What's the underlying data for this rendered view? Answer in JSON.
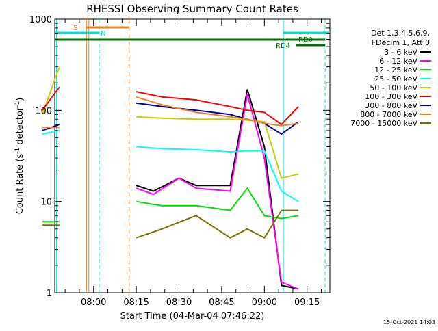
{
  "chart_data": {
    "type": "line",
    "title": "RHESSI Observing Summary Count Rates",
    "xlabel": "Start Time (04-Mar-04 07:46:22)",
    "ylabel": "Count Rate (s",
    "ylabel_sup": "-1",
    "ylabel_rest": " detector",
    "ylabel_tail": ")",
    "y_scale": "log",
    "ylim": [
      1,
      1000
    ],
    "xlim": [
      "07:46:22",
      "09:23:00"
    ],
    "x_ticks": [
      "08:00",
      "08:15",
      "08:30",
      "08:45",
      "09:00",
      "09:15"
    ],
    "y_ticks": [
      "1",
      "10",
      "100",
      "1000"
    ],
    "legend_header": [
      "Det 1,3,4,5,6,9,",
      "FDecim 1, Att 0"
    ],
    "legend_position": "right",
    "footer_date": "15-Oct-2021 14:03",
    "flags": [
      {
        "label": "S",
        "color": "#f08020"
      },
      {
        "label": "N",
        "color": "#00e0e0"
      },
      {
        "label": "RD0",
        "color": "#007000"
      },
      {
        "label": "RD4",
        "color": "#007000"
      }
    ],
    "series": [
      {
        "name": "3 - 6 keV",
        "color": "#000000",
        "values": [
          [
            7.7,
            null
          ],
          [
            7.93,
            null
          ],
          [
            8.19,
            null
          ],
          [
            8.25,
            15
          ],
          [
            8.35,
            13
          ],
          [
            8.5,
            18
          ],
          [
            8.6,
            15
          ],
          [
            8.8,
            15
          ],
          [
            8.9,
            170
          ],
          [
            9.0,
            40
          ],
          [
            9.1,
            1.2
          ],
          [
            9.2,
            1.1
          ]
        ]
      },
      {
        "name": "6 - 12 keV",
        "color": "#ff00ff",
        "values": [
          [
            7.7,
            null
          ],
          [
            7.93,
            null
          ],
          [
            8.19,
            null
          ],
          [
            8.25,
            14
          ],
          [
            8.35,
            12
          ],
          [
            8.5,
            18
          ],
          [
            8.6,
            14
          ],
          [
            8.8,
            13
          ],
          [
            8.9,
            150
          ],
          [
            9.0,
            30
          ],
          [
            9.1,
            1.3
          ],
          [
            9.2,
            1.1
          ]
        ]
      },
      {
        "name": "12 - 25 keV",
        "color": "#00e000",
        "values": [
          [
            7.7,
            6
          ],
          [
            7.8,
            6
          ],
          [
            7.93,
            null
          ],
          [
            8.19,
            null
          ],
          [
            8.25,
            10
          ],
          [
            8.4,
            9
          ],
          [
            8.6,
            9
          ],
          [
            8.8,
            8
          ],
          [
            8.9,
            14
          ],
          [
            9.0,
            7
          ],
          [
            9.1,
            6.5
          ],
          [
            9.2,
            7
          ]
        ]
      },
      {
        "name": "25 - 50 keV",
        "color": "#00ffff",
        "values": [
          [
            7.7,
            55
          ],
          [
            7.8,
            60
          ],
          [
            7.93,
            null
          ],
          [
            8.19,
            null
          ],
          [
            8.25,
            40
          ],
          [
            8.4,
            38
          ],
          [
            8.6,
            37
          ],
          [
            8.8,
            35
          ],
          [
            8.9,
            36
          ],
          [
            9.0,
            36
          ],
          [
            9.1,
            13
          ],
          [
            9.2,
            10
          ]
        ]
      },
      {
        "name": "50 - 100 keV",
        "color": "#cccc00",
        "values": [
          [
            7.7,
            90
          ],
          [
            7.8,
            300
          ],
          [
            7.93,
            null
          ],
          [
            8.19,
            null
          ],
          [
            8.25,
            85
          ],
          [
            8.4,
            82
          ],
          [
            8.6,
            80
          ],
          [
            8.8,
            80
          ],
          [
            8.9,
            78
          ],
          [
            9.0,
            75
          ],
          [
            9.1,
            18
          ],
          [
            9.2,
            20
          ]
        ]
      },
      {
        "name": "100 - 300 keV",
        "color": "#ff0000",
        "values": [
          [
            7.7,
            100
          ],
          [
            7.8,
            180
          ],
          [
            7.93,
            null
          ],
          [
            8.19,
            null
          ],
          [
            8.25,
            160
          ],
          [
            8.4,
            140
          ],
          [
            8.6,
            130
          ],
          [
            8.8,
            110
          ],
          [
            8.9,
            100
          ],
          [
            9.0,
            95
          ],
          [
            9.1,
            70
          ],
          [
            9.2,
            110
          ]
        ]
      },
      {
        "name": "300 - 800 keV",
        "color": "#0000a0",
        "values": [
          [
            7.7,
            60
          ],
          [
            7.8,
            70
          ],
          [
            7.93,
            null
          ],
          [
            8.19,
            null
          ],
          [
            8.25,
            120
          ],
          [
            8.4,
            110
          ],
          [
            8.6,
            100
          ],
          [
            8.8,
            90
          ],
          [
            8.9,
            80
          ],
          [
            9.0,
            72
          ],
          [
            9.1,
            55
          ],
          [
            9.2,
            75
          ]
        ]
      },
      {
        "name": "800 - 7000 keV",
        "color": "#f08020",
        "values": [
          [
            7.7,
            65
          ],
          [
            7.8,
            65
          ],
          [
            7.93,
            null
          ],
          [
            8.19,
            null
          ],
          [
            8.25,
            140
          ],
          [
            8.4,
            115
          ],
          [
            8.6,
            95
          ],
          [
            8.8,
            85
          ],
          [
            8.9,
            80
          ],
          [
            9.0,
            72
          ],
          [
            9.1,
            68
          ],
          [
            9.2,
            72
          ]
        ]
      },
      {
        "name": "7000 - 15000 keV",
        "color": "#807000",
        "values": [
          [
            7.7,
            5.5
          ],
          [
            7.8,
            5.5
          ],
          [
            7.93,
            null
          ],
          [
            8.19,
            null
          ],
          [
            8.25,
            4
          ],
          [
            8.4,
            5
          ],
          [
            8.6,
            7
          ],
          [
            8.8,
            4
          ],
          [
            8.9,
            5
          ],
          [
            9.0,
            4
          ],
          [
            9.1,
            8
          ],
          [
            9.2,
            8
          ]
        ]
      }
    ]
  }
}
